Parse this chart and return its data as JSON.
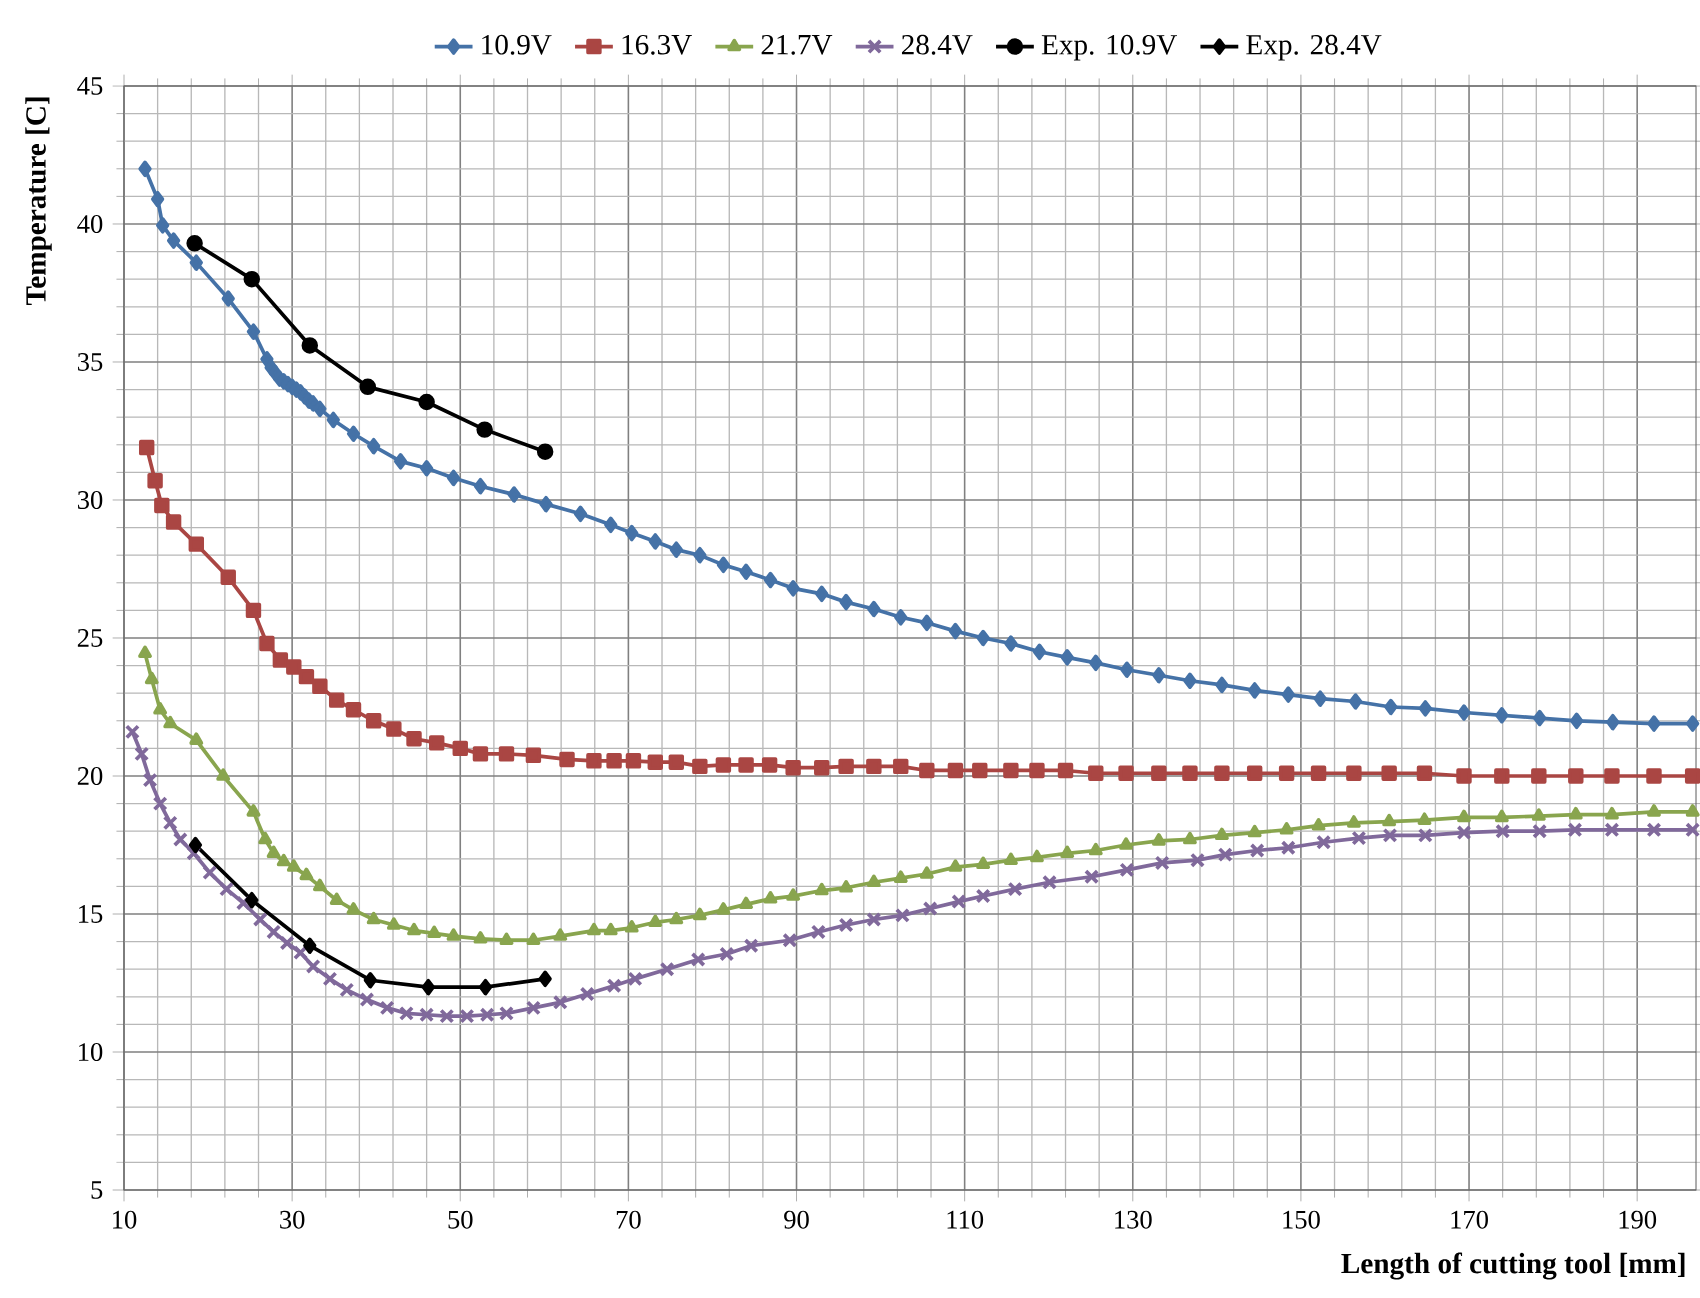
{
  "chart_data": {
    "type": "line",
    "xlabel": "Length of cutting tool [mm]",
    "ylabel": "Temperature [C]",
    "xlim": [
      10,
      197
    ],
    "ylim": [
      5,
      45
    ],
    "xticks": [
      10,
      30,
      50,
      70,
      90,
      110,
      130,
      150,
      170,
      190
    ],
    "yticks": [
      5,
      10,
      15,
      20,
      25,
      30,
      35,
      40,
      45
    ],
    "grid": true,
    "legend": "top",
    "line_style": "solid",
    "series": [
      {
        "name": "10.9V",
        "color": "#4572a7",
        "marker": "diamond",
        "x": [
          12.5,
          14.0,
          14.6,
          15.9,
          18.6,
          22.4,
          25.4,
          27,
          27.5,
          28,
          28.5,
          29,
          29.5,
          30,
          30.5,
          31,
          31.5,
          32,
          32.5,
          33.3,
          34.9,
          37.3,
          39.7,
          42.9,
          46,
          49.2,
          52.4,
          56.4,
          60.2,
          64.3,
          67.9,
          70.4,
          73.2,
          75.7,
          78.5,
          81.3,
          84.0,
          86.9,
          89.6,
          93,
          95.9,
          99.2,
          102.4,
          105.5,
          108.9,
          112.2,
          115.5,
          118.9,
          122.2,
          125.6,
          129.3,
          133.1,
          136.8,
          140.6,
          144.5,
          148.5,
          152.3,
          156.5,
          160.7,
          164.8,
          169.4,
          173.9,
          178.4,
          182.8,
          187.1,
          192,
          196.6
        ],
        "values": [
          42.0,
          40.9,
          39.95,
          39.4,
          38.6,
          37.3,
          36.1,
          35.1,
          34.8,
          34.6,
          34.4,
          34.3,
          34.2,
          34.1,
          34.0,
          33.9,
          33.75,
          33.6,
          33.5,
          33.3,
          32.9,
          32.4,
          31.95,
          31.4,
          31.15,
          30.8,
          30.5,
          30.2,
          29.85,
          29.5,
          29.1,
          28.8,
          28.5,
          28.2,
          28.0,
          27.65,
          27.4,
          27.1,
          26.8,
          26.6,
          26.3,
          26.05,
          25.75,
          25.55,
          25.25,
          25.0,
          24.8,
          24.5,
          24.3,
          24.1,
          23.85,
          23.65,
          23.45,
          23.3,
          23.1,
          22.95,
          22.8,
          22.7,
          22.5,
          22.45,
          22.3,
          22.2,
          22.1,
          22.0,
          21.95,
          21.9,
          21.9
        ]
      },
      {
        "name": "16.3V",
        "color": "#aa4643",
        "marker": "square",
        "x": [
          12.7,
          13.7,
          14.5,
          15.9,
          18.6,
          22.4,
          25.4,
          27.0,
          28.6,
          30.2,
          31.7,
          33.3,
          35.3,
          37.3,
          39.7,
          42.1,
          44.5,
          47.2,
          50,
          52.4,
          55.5,
          58.7,
          62.7,
          65.9,
          68.3,
          70.6,
          73.2,
          75.7,
          78.5,
          81.3,
          84,
          86.8,
          89.6,
          93,
          95.9,
          99.2,
          102.4,
          105.5,
          108.9,
          111.8,
          115.5,
          118.6,
          122,
          125.6,
          129.2,
          133.1,
          136.8,
          140.6,
          144.5,
          148.3,
          152.1,
          156.3,
          160.5,
          164.7,
          169.4,
          173.9,
          178.3,
          182.7,
          187,
          192,
          196.6
        ],
        "values": [
          31.9,
          30.7,
          29.8,
          29.2,
          28.4,
          27.2,
          26.0,
          24.8,
          24.2,
          23.95,
          23.6,
          23.25,
          22.75,
          22.4,
          22.0,
          21.7,
          21.35,
          21.2,
          21.0,
          20.8,
          20.8,
          20.75,
          20.6,
          20.55,
          20.55,
          20.55,
          20.5,
          20.5,
          20.35,
          20.4,
          20.4,
          20.4,
          20.3,
          20.3,
          20.35,
          20.35,
          20.35,
          20.2,
          20.2,
          20.2,
          20.2,
          20.2,
          20.2,
          20.1,
          20.1,
          20.1,
          20.1,
          20.1,
          20.1,
          20.1,
          20.1,
          20.1,
          20.1,
          20.1,
          20.0,
          20.0,
          20.0,
          20.0,
          20.0,
          20.0,
          20.0
        ]
      },
      {
        "name": "21.7V",
        "color": "#89a54e",
        "marker": "triangle",
        "x": [
          12.5,
          13.3,
          14.3,
          15.5,
          18.6,
          21.8,
          25.4,
          26.8,
          27.8,
          29,
          30.2,
          31.7,
          33.3,
          35.3,
          37.3,
          39.7,
          42.1,
          44.5,
          46.9,
          49.2,
          52.4,
          55.5,
          58.7,
          61.9,
          65.9,
          67.9,
          70.4,
          73.2,
          75.7,
          78.5,
          81.3,
          84,
          86.9,
          89.6,
          93,
          95.9,
          99.2,
          102.4,
          105.5,
          108.9,
          112.2,
          115.5,
          118.6,
          122.2,
          125.6,
          129.2,
          133.1,
          136.8,
          140.6,
          144.5,
          148.3,
          152.1,
          156.3,
          160.5,
          164.7,
          169.4,
          173.9,
          178.3,
          182.7,
          187,
          192,
          196.6
        ],
        "values": [
          24.45,
          23.5,
          22.4,
          21.9,
          21.3,
          20.0,
          18.7,
          17.7,
          17.2,
          16.9,
          16.7,
          16.4,
          16.0,
          15.5,
          15.15,
          14.8,
          14.6,
          14.4,
          14.3,
          14.2,
          14.1,
          14.05,
          14.05,
          14.2,
          14.4,
          14.4,
          14.5,
          14.7,
          14.8,
          14.95,
          15.15,
          15.35,
          15.55,
          15.65,
          15.85,
          15.95,
          16.15,
          16.3,
          16.45,
          16.7,
          16.8,
          16.95,
          17.05,
          17.2,
          17.3,
          17.5,
          17.65,
          17.7,
          17.85,
          17.95,
          18.05,
          18.2,
          18.3,
          18.35,
          18.4,
          18.5,
          18.5,
          18.55,
          18.6,
          18.6,
          18.7,
          18.7
        ]
      },
      {
        "name": "28.4V",
        "color": "#80699b",
        "marker": "cross",
        "x": [
          11,
          12.1,
          13.1,
          14.3,
          15.5,
          16.7,
          18.3,
          20.2,
          22.2,
          24.2,
          26.2,
          27.8,
          29.4,
          31,
          32.5,
          34.5,
          36.5,
          38.9,
          41.3,
          43.6,
          46,
          48.4,
          50.8,
          53.2,
          55.5,
          58.7,
          61.9,
          65.1,
          68.3,
          70.8,
          74.6,
          78.3,
          81.7,
          84.6,
          89.2,
          92.6,
          95.9,
          99.2,
          102.6,
          105.9,
          109.3,
          112.2,
          116,
          120.1,
          125.1,
          129.3,
          133.5,
          137.7,
          141,
          144.8,
          148.5,
          152.7,
          156.9,
          160.6,
          164.8,
          169.4,
          174,
          178.4,
          182.6,
          187,
          192,
          196.6
        ],
        "values": [
          21.6,
          20.8,
          19.85,
          19.0,
          18.3,
          17.7,
          17.2,
          16.5,
          15.9,
          15.4,
          14.8,
          14.35,
          13.95,
          13.6,
          13.1,
          12.65,
          12.25,
          11.9,
          11.6,
          11.4,
          11.35,
          11.3,
          11.3,
          11.35,
          11.4,
          11.6,
          11.8,
          12.1,
          12.4,
          12.65,
          13.0,
          13.35,
          13.55,
          13.85,
          14.05,
          14.35,
          14.6,
          14.8,
          14.95,
          15.2,
          15.45,
          15.65,
          15.9,
          16.15,
          16.35,
          16.6,
          16.85,
          16.95,
          17.15,
          17.3,
          17.4,
          17.6,
          17.75,
          17.85,
          17.85,
          17.95,
          18.0,
          18.0,
          18.05,
          18.05,
          18.05,
          18.05
        ]
      },
      {
        "name": "Exp. 10.9V",
        "color": "#000000",
        "marker": "circle",
        "x": [
          18.4,
          25.2,
          32.1,
          39.0,
          46.0,
          52.9,
          60.1
        ],
        "values": [
          39.3,
          38.0,
          35.6,
          34.1,
          33.55,
          32.55,
          31.75
        ]
      },
      {
        "name": "Exp. 28.4V",
        "color": "#000000",
        "marker": "diamond",
        "x": [
          18.5,
          25.2,
          32.1,
          39.3,
          46.2,
          53.0,
          60.1
        ],
        "values": [
          17.5,
          15.5,
          13.85,
          12.6,
          12.35,
          12.35,
          12.65
        ]
      }
    ]
  }
}
